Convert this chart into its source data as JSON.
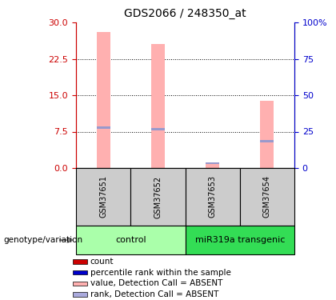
{
  "title": "GDS2066 / 248350_at",
  "samples": [
    "GSM37651",
    "GSM37652",
    "GSM37653",
    "GSM37654"
  ],
  "pink_bar_values": [
    28.0,
    25.5,
    1.2,
    13.8
  ],
  "blue_mark_values": [
    8.3,
    8.0,
    1.0,
    5.5
  ],
  "pink_bar_color": "#FFB0B0",
  "blue_mark_color": "#9999CC",
  "left_ylim": [
    0,
    30
  ],
  "right_ylim": [
    0,
    100
  ],
  "left_yticks": [
    0,
    7.5,
    15,
    22.5,
    30
  ],
  "right_yticks": [
    0,
    25,
    50,
    75,
    100
  ],
  "groups": [
    {
      "label": "control",
      "samples": [
        0,
        1
      ],
      "color": "#AAFFAA"
    },
    {
      "label": "miR319a transgenic",
      "samples": [
        2,
        3
      ],
      "color": "#33DD55"
    }
  ],
  "group_label": "genotype/variation",
  "legend_items": [
    {
      "color": "#CC0000",
      "label": "count"
    },
    {
      "color": "#0000CC",
      "label": "percentile rank within the sample"
    },
    {
      "color": "#FFB0B0",
      "label": "value, Detection Call = ABSENT"
    },
    {
      "color": "#AAAADD",
      "label": "rank, Detection Call = ABSENT"
    }
  ],
  "sample_box_color": "#CCCCCC",
  "left_axis_color": "#CC0000",
  "right_axis_color": "#0000CC",
  "bar_width": 0.25
}
